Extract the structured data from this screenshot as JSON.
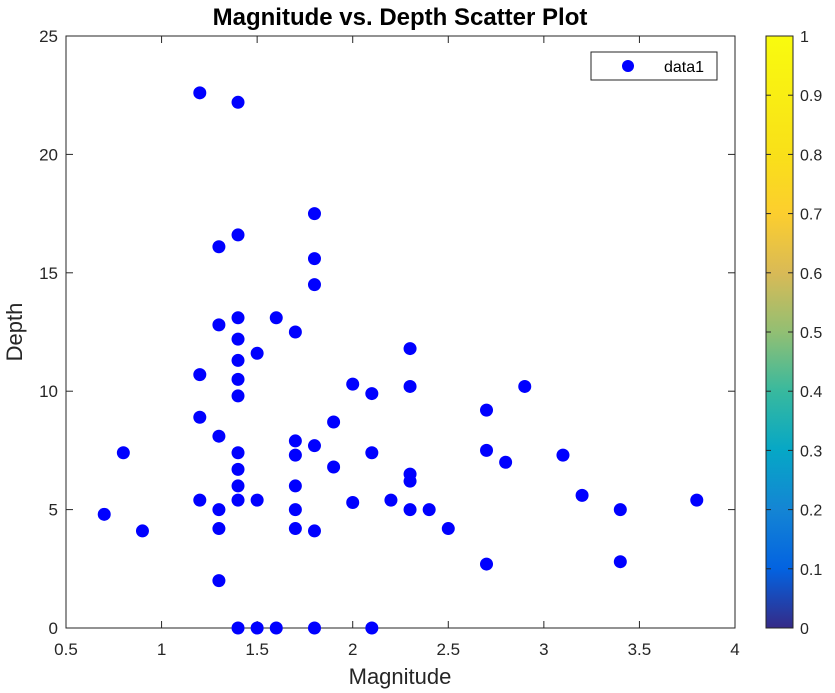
{
  "chart_data": {
    "type": "scatter",
    "title": "Magnitude vs. Depth Scatter Plot",
    "xlabel": "Magnitude",
    "ylabel": "Depth",
    "xlim": [
      0.5,
      4
    ],
    "ylim": [
      0,
      25
    ],
    "xticks": [
      "0.5",
      "1",
      "1.5",
      "2",
      "2.5",
      "3",
      "3.5",
      "4"
    ],
    "yticks": [
      "0",
      "5",
      "10",
      "15",
      "20",
      "25"
    ],
    "grid": false,
    "legend": {
      "placement": "top-right",
      "entries": [
        "data1"
      ]
    },
    "marker_color": "#0000ff",
    "colorbar": {
      "range": [
        0,
        1
      ],
      "ticks": [
        "0",
        "0.1",
        "0.2",
        "0.3",
        "0.4",
        "0.5",
        "0.6",
        "0.7",
        "0.8",
        "0.9",
        "1"
      ],
      "colormap": "parula"
    },
    "series": [
      {
        "name": "data1",
        "points": [
          [
            1.2,
            22.6
          ],
          [
            1.4,
            22.2
          ],
          [
            1.8,
            17.5
          ],
          [
            1.4,
            16.6
          ],
          [
            1.3,
            16.1
          ],
          [
            1.8,
            15.6
          ],
          [
            1.8,
            14.5
          ],
          [
            1.4,
            13.1
          ],
          [
            1.6,
            13.1
          ],
          [
            1.3,
            12.8
          ],
          [
            1.7,
            12.5
          ],
          [
            1.4,
            12.2
          ],
          [
            2.3,
            11.8
          ],
          [
            1.5,
            11.6
          ],
          [
            1.4,
            11.3
          ],
          [
            1.2,
            10.7
          ],
          [
            1.4,
            10.5
          ],
          [
            2.0,
            10.3
          ],
          [
            2.3,
            10.2
          ],
          [
            2.9,
            10.2
          ],
          [
            2.1,
            9.9
          ],
          [
            1.4,
            9.8
          ],
          [
            2.7,
            9.2
          ],
          [
            1.2,
            8.9
          ],
          [
            1.9,
            8.7
          ],
          [
            1.3,
            8.1
          ],
          [
            1.7,
            7.9
          ],
          [
            1.8,
            7.7
          ],
          [
            2.7,
            7.5
          ],
          [
            0.8,
            7.4
          ],
          [
            1.4,
            7.4
          ],
          [
            2.1,
            7.4
          ],
          [
            1.7,
            7.3
          ],
          [
            3.1,
            7.3
          ],
          [
            2.8,
            7.0
          ],
          [
            1.9,
            6.8
          ],
          [
            1.4,
            6.7
          ],
          [
            2.3,
            6.5
          ],
          [
            2.3,
            6.2
          ],
          [
            1.4,
            6.0
          ],
          [
            1.7,
            6.0
          ],
          [
            3.2,
            5.6
          ],
          [
            1.2,
            5.4
          ],
          [
            1.4,
            5.4
          ],
          [
            1.5,
            5.4
          ],
          [
            2.2,
            5.4
          ],
          [
            3.8,
            5.4
          ],
          [
            2.0,
            5.3
          ],
          [
            1.3,
            5.0
          ],
          [
            1.7,
            5.0
          ],
          [
            2.3,
            5.0
          ],
          [
            2.4,
            5.0
          ],
          [
            3.4,
            5.0
          ],
          [
            0.7,
            4.8
          ],
          [
            1.3,
            4.2
          ],
          [
            1.7,
            4.2
          ],
          [
            2.5,
            4.2
          ],
          [
            0.9,
            4.1
          ],
          [
            1.8,
            4.1
          ],
          [
            3.4,
            2.8
          ],
          [
            2.7,
            2.7
          ],
          [
            1.3,
            2.0
          ],
          [
            1.4,
            0.0
          ],
          [
            1.5,
            0.0
          ],
          [
            1.6,
            0.0
          ],
          [
            1.8,
            0.0
          ],
          [
            2.1,
            0.0
          ]
        ]
      }
    ]
  }
}
